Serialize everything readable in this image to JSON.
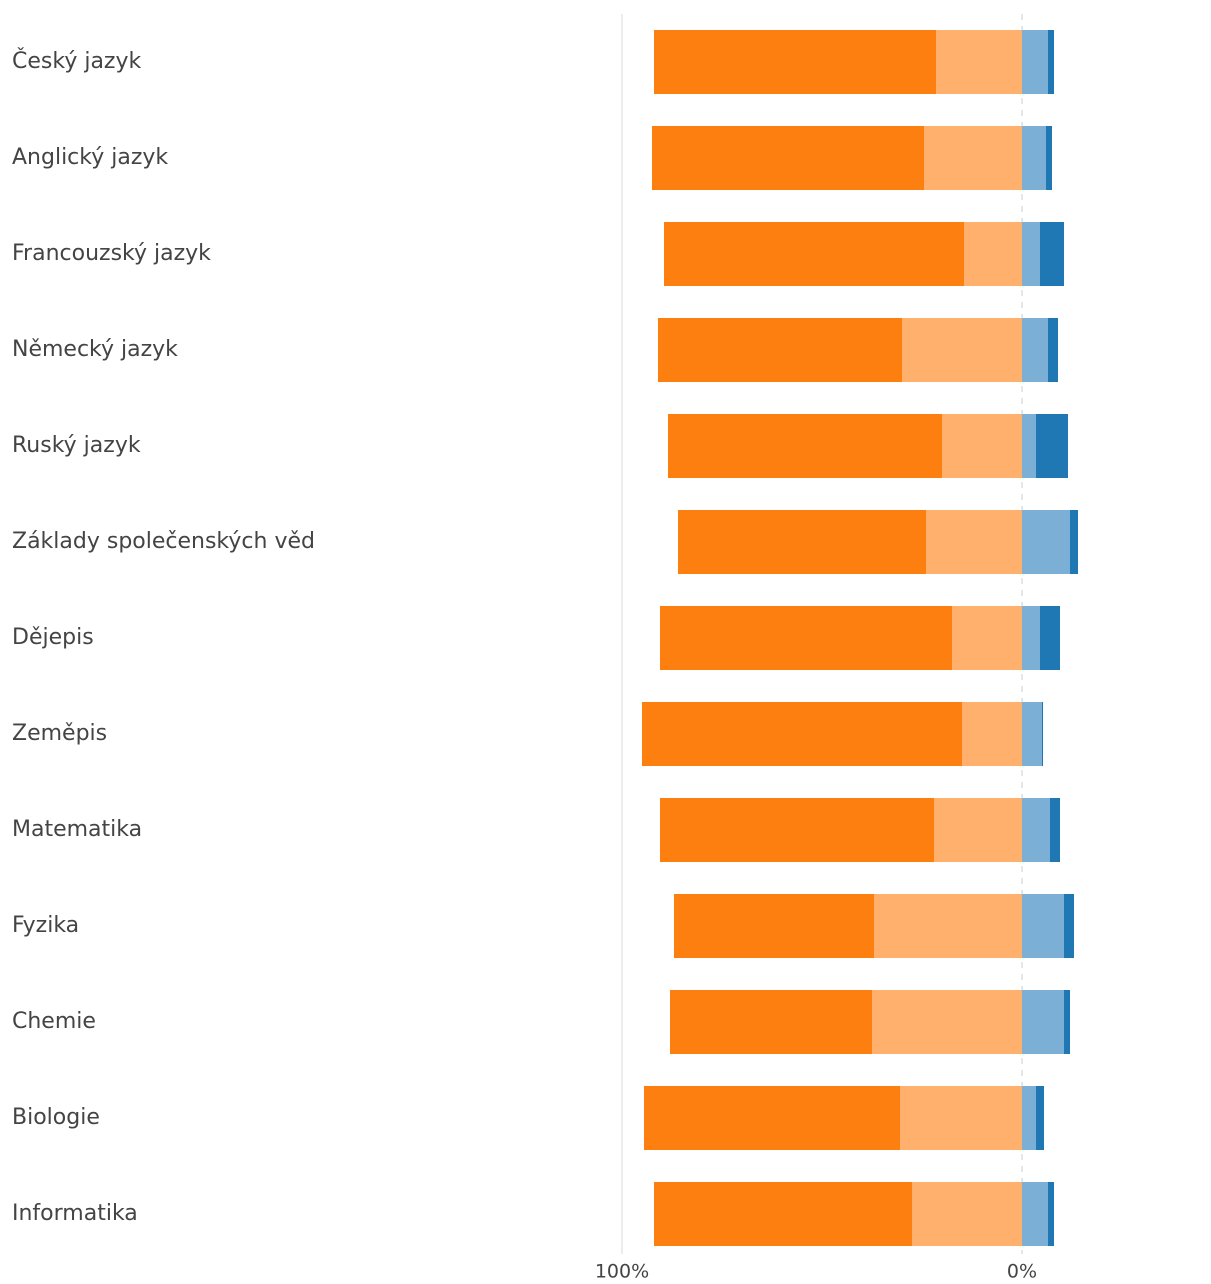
{
  "chart_data": {
    "type": "diverging-bar",
    "categories": [
      "Český jazyk",
      "Anglický jazyk",
      "Francouzský jazyk",
      "Německý jazyk",
      "Ruský jazyk",
      "Základy společenských věd",
      "Dějepis",
      "Zeměpis",
      "Matematika",
      "Fyzika",
      "Chemie",
      "Biologie",
      "Informatika"
    ],
    "series": [
      {
        "color": "#fd7f0f",
        "side": "left",
        "values": [
          70.5,
          68,
          75,
          61,
          68.5,
          62,
          73,
          80,
          68.5,
          50,
          50.5,
          64,
          64.5
        ]
      },
      {
        "color": "#feb06c",
        "side": "left",
        "values": [
          21.5,
          24.5,
          14.5,
          30,
          20,
          24,
          17.5,
          15,
          22,
          37,
          37.5,
          30.5,
          27.5
        ]
      },
      {
        "color": "#7bafd6",
        "side": "right",
        "values": [
          6.5,
          6,
          4.5,
          6.5,
          3.5,
          12,
          4.5,
          5,
          7,
          10.5,
          10.5,
          3.5,
          6.5
        ]
      },
      {
        "color": "#1f77b4",
        "side": "right",
        "values": [
          1.5,
          1.5,
          6,
          2.5,
          8,
          2,
          5,
          0.25,
          2.5,
          2.5,
          1.5,
          2,
          1.5
        ]
      }
    ],
    "xlim": [
      -100,
      47.25
    ],
    "xticks": [
      {
        "value": -100,
        "label": "100%"
      },
      {
        "value": 0,
        "label": "0%"
      }
    ],
    "grid": true
  }
}
